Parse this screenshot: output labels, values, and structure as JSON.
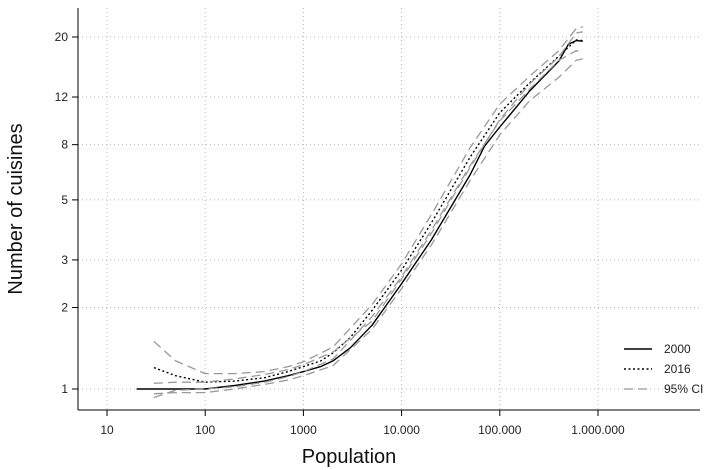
{
  "chart_data": {
    "type": "line",
    "title": "",
    "xlabel": "Population",
    "ylabel": "Number of cuisines",
    "x_scale": "log",
    "y_scale": "log",
    "xlim": [
      10,
      1000000
    ],
    "ylim": [
      1,
      20
    ],
    "x_ticks": [
      {
        "value": 10,
        "label": "10"
      },
      {
        "value": 100,
        "label": "100"
      },
      {
        "value": 1000,
        "label": "1000"
      },
      {
        "value": 10000,
        "label": "10.000"
      },
      {
        "value": 100000,
        "label": "100.000"
      },
      {
        "value": 1000000,
        "label": "1.000.000"
      }
    ],
    "y_ticks": [
      {
        "value": 1,
        "label": "1"
      },
      {
        "value": 2,
        "label": "2"
      },
      {
        "value": 3,
        "label": "3"
      },
      {
        "value": 5,
        "label": "5"
      },
      {
        "value": 8,
        "label": "8"
      },
      {
        "value": 12,
        "label": "12"
      },
      {
        "value": 20,
        "label": "20"
      }
    ],
    "grid": true,
    "grid_style": "dotted",
    "legend_position": "right",
    "series": [
      {
        "name": "2000",
        "style": "solid",
        "color": "#000000",
        "points": [
          [
            20,
            1.0
          ],
          [
            50,
            1.0
          ],
          [
            100,
            1.0
          ],
          [
            200,
            1.03
          ],
          [
            400,
            1.07
          ],
          [
            700,
            1.12
          ],
          [
            1000,
            1.16
          ],
          [
            1500,
            1.21
          ],
          [
            2000,
            1.27
          ],
          [
            3000,
            1.42
          ],
          [
            5000,
            1.72
          ],
          [
            10000,
            2.45
          ],
          [
            20000,
            3.55
          ],
          [
            50000,
            6.2
          ],
          [
            70000,
            7.9
          ],
          [
            100000,
            9.3
          ],
          [
            200000,
            12.6
          ],
          [
            400000,
            16.3
          ],
          [
            500000,
            18.8
          ],
          [
            600000,
            19.4
          ],
          [
            700000,
            19.3
          ]
        ]
      },
      {
        "name": "2016",
        "style": "dotted",
        "color": "#000000",
        "points": [
          [
            30,
            1.2
          ],
          [
            50,
            1.12
          ],
          [
            100,
            1.06
          ],
          [
            200,
            1.07
          ],
          [
            400,
            1.1
          ],
          [
            700,
            1.16
          ],
          [
            1000,
            1.21
          ],
          [
            1500,
            1.27
          ],
          [
            2000,
            1.36
          ],
          [
            3000,
            1.55
          ],
          [
            5000,
            1.95
          ],
          [
            10000,
            2.75
          ],
          [
            20000,
            4.1
          ],
          [
            50000,
            7.2
          ],
          [
            100000,
            10.5
          ],
          [
            200000,
            13.5
          ],
          [
            400000,
            17.0
          ],
          [
            600000,
            19.5
          ],
          [
            700000,
            19.4
          ]
        ]
      },
      {
        "name": "95% CI",
        "style": "dashed",
        "color": "#999999",
        "bands": [
          {
            "points": [
              [
                30,
                1.5
              ],
              [
                50,
                1.27
              ],
              [
                100,
                1.14
              ],
              [
                200,
                1.14
              ],
              [
                400,
                1.16
              ],
              [
                700,
                1.21
              ],
              [
                1000,
                1.26
              ],
              [
                2000,
                1.43
              ],
              [
                5000,
                2.05
              ],
              [
                10000,
                2.9
              ],
              [
                20000,
                4.4
              ],
              [
                50000,
                7.8
              ],
              [
                100000,
                11.3
              ],
              [
                200000,
                14.3
              ],
              [
                400000,
                17.8
              ],
              [
                600000,
                21.5
              ],
              [
                700000,
                21.8
              ]
            ]
          },
          {
            "points": [
              [
                30,
                0.93
              ],
              [
                50,
                0.99
              ],
              [
                100,
                1.0
              ],
              [
                200,
                1.02
              ],
              [
                400,
                1.06
              ],
              [
                700,
                1.11
              ],
              [
                1000,
                1.16
              ],
              [
                2000,
                1.29
              ],
              [
                5000,
                1.85
              ],
              [
                10000,
                2.6
              ],
              [
                20000,
                3.85
              ],
              [
                50000,
                6.7
              ],
              [
                100000,
                9.8
              ],
              [
                200000,
                12.8
              ],
              [
                400000,
                16.4
              ],
              [
                600000,
                17.8
              ],
              [
                700000,
                17.6
              ]
            ]
          },
          {
            "points": [
              [
                30,
                1.05
              ],
              [
                50,
                1.06
              ],
              [
                100,
                1.06
              ],
              [
                200,
                1.09
              ],
              [
                400,
                1.13
              ],
              [
                700,
                1.18
              ],
              [
                1000,
                1.23
              ],
              [
                2000,
                1.37
              ],
              [
                5000,
                1.78
              ],
              [
                10000,
                2.55
              ],
              [
                20000,
                3.75
              ],
              [
                50000,
                6.6
              ],
              [
                100000,
                9.9
              ],
              [
                200000,
                13.4
              ],
              [
                400000,
                16.9
              ],
              [
                600000,
                20.7
              ],
              [
                700000,
                20.9
              ]
            ]
          },
          {
            "points": [
              [
                30,
                0.96
              ],
              [
                50,
                0.97
              ],
              [
                100,
                0.97
              ],
              [
                200,
                1.0
              ],
              [
                400,
                1.04
              ],
              [
                700,
                1.08
              ],
              [
                1000,
                1.12
              ],
              [
                2000,
                1.22
              ],
              [
                5000,
                1.66
              ],
              [
                10000,
                2.35
              ],
              [
                20000,
                3.4
              ],
              [
                50000,
                5.9
              ],
              [
                100000,
                8.7
              ],
              [
                200000,
                11.6
              ],
              [
                400000,
                14.2
              ],
              [
                600000,
                16.4
              ],
              [
                700000,
                16.6
              ]
            ]
          }
        ]
      }
    ]
  }
}
